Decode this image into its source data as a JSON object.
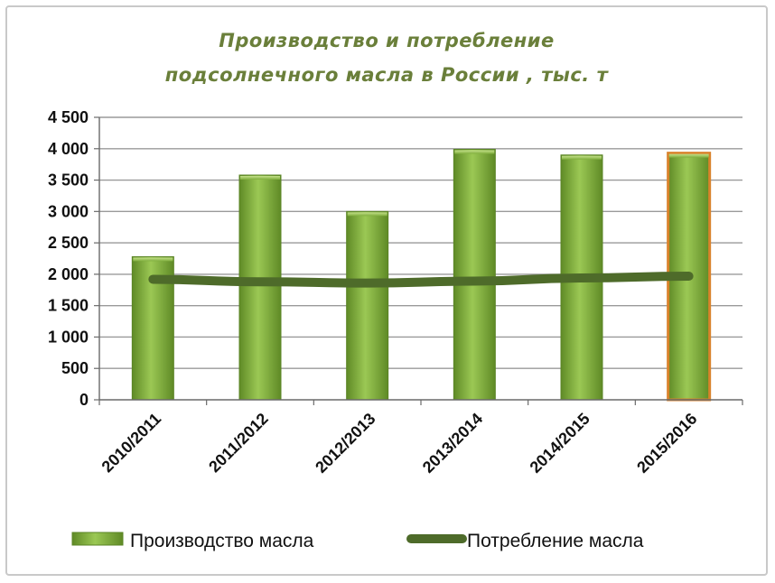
{
  "chart_data": {
    "type": "bar",
    "title": [
      "Производство и потребление",
      "подсолнечного масла в России , тыс. т"
    ],
    "categories": [
      "2010/2011",
      "2011/2012",
      "2012/2013",
      "2013/2014",
      "2014/2015",
      "2015/2016"
    ],
    "series": [
      {
        "name": "Производство масла",
        "type": "bar",
        "values": [
          2280,
          3580,
          3000,
          3990,
          3900,
          3930
        ],
        "color": "#7fae3c",
        "highlight": {
          "index": 5,
          "border_color": "#d9822b"
        }
      },
      {
        "name": "Потребление масла",
        "type": "line",
        "values": [
          1920,
          1880,
          1860,
          1890,
          1940,
          1970
        ],
        "color": "#4e6b2a"
      }
    ],
    "ylim": [
      0,
      4500
    ],
    "yticks": [
      0,
      500,
      1000,
      1500,
      2000,
      2500,
      3000,
      3500,
      4000,
      4500
    ],
    "ytick_labels": [
      "0",
      "500",
      "1 000",
      "1 500",
      "2 000",
      "2 500",
      "3 000",
      "3 500",
      "4 000",
      "4 500"
    ],
    "grid": true,
    "legend_position": "bottom"
  }
}
